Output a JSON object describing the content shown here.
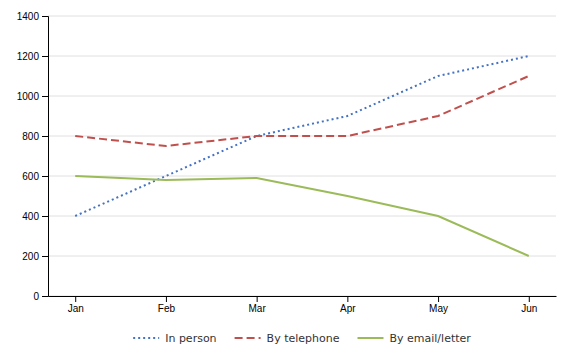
{
  "chart_data": {
    "type": "line",
    "categories": [
      "Jan",
      "Feb",
      "Mar",
      "Apr",
      "May",
      "Jun"
    ],
    "series": [
      {
        "name": "In person",
        "color": "#4472C4",
        "line_style": "dotted",
        "values": [
          400,
          600,
          800,
          900,
          1100,
          1200
        ]
      },
      {
        "name": "By telephone",
        "color": "#C0504D",
        "line_style": "dashed",
        "values": [
          800,
          750,
          800,
          800,
          900,
          1100
        ]
      },
      {
        "name": "By email/letter",
        "color": "#9BBB59",
        "line_style": "solid",
        "values": [
          600,
          580,
          590,
          500,
          400,
          200
        ]
      }
    ],
    "ylim": [
      0,
      1400
    ],
    "yticks": [
      0,
      200,
      400,
      600,
      800,
      1000,
      1200,
      1400
    ],
    "grid": true,
    "legend": "bottom"
  }
}
